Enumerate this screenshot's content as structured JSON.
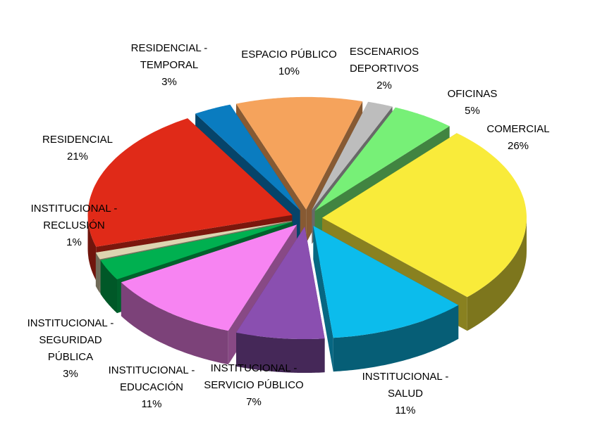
{
  "chart_data": {
    "type": "pie",
    "categories": [
      "ESPACIO PÚBLICO",
      "ESCENARIOS DEPORTIVOS",
      "OFICINAS",
      "COMERCIAL",
      "INSTITUCIONAL - SALUD",
      "INSTITUCIONAL - SERVICIO PÚBLICO",
      "INSTITUCIONAL - EDUCACIÓN",
      "INSTITUCIONAL - SEGURIDAD PÚBLICA",
      "INSTITUCIONAL - RECLUSIÓN",
      "RESIDENCIAL",
      "RESIDENCIAL - TEMPORAL"
    ],
    "values": [
      10,
      2,
      5,
      26,
      11,
      7,
      11,
      3,
      1,
      21,
      3
    ],
    "value_labels": [
      "10%",
      "2%",
      "5%",
      "26%",
      "11%",
      "7%",
      "11%",
      "3%",
      "1%",
      "21%",
      "3%"
    ],
    "colors": [
      "#f5a35c",
      "#bdbdbd",
      "#77f077",
      "#f9eb3a",
      "#0cbcec",
      "#8a4fb0",
      "#f784f2",
      "#00b050",
      "#ddd4b0",
      "#e02a18",
      "#0a7cc0"
    ]
  }
}
